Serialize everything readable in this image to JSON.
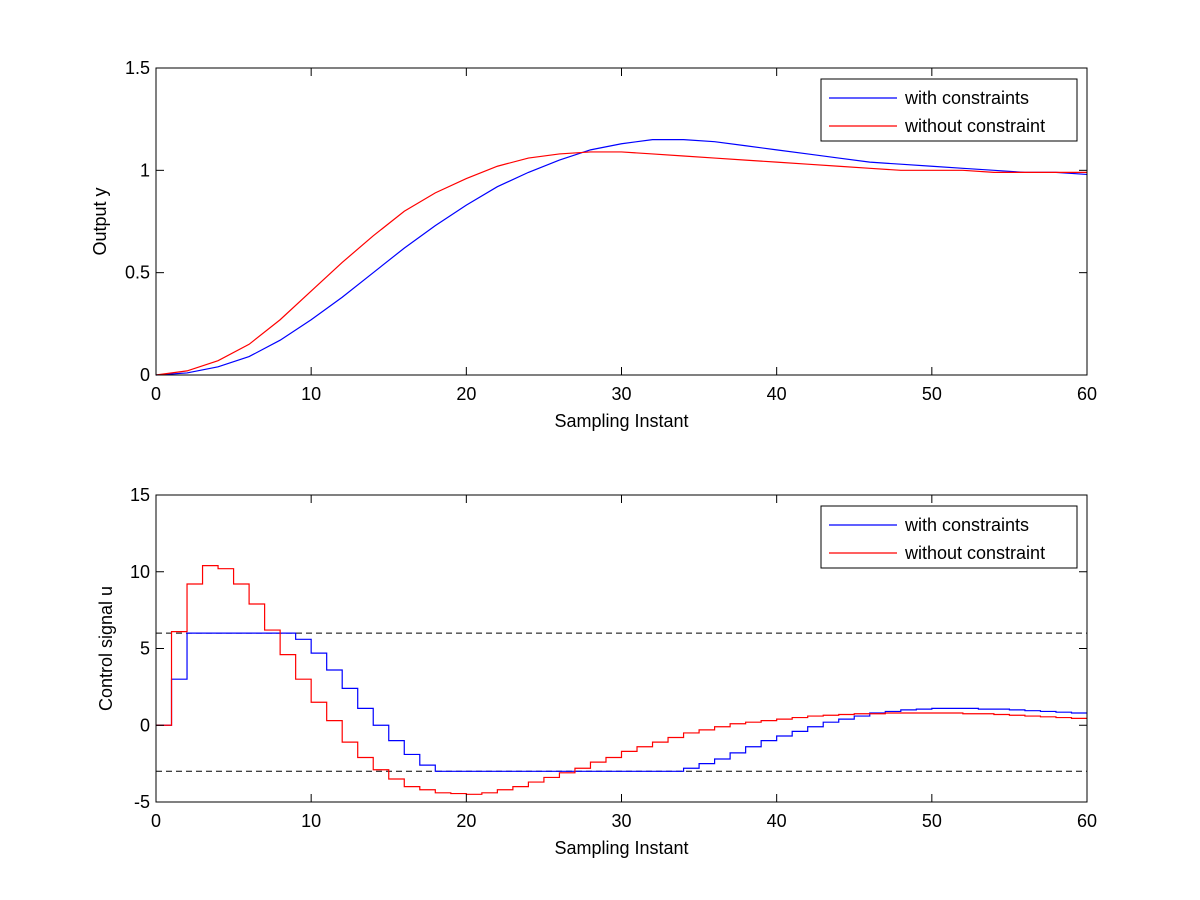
{
  "chart_data": [
    {
      "type": "line",
      "title": "",
      "xlabel": "Sampling Instant",
      "ylabel": "Output y",
      "xlim": [
        0,
        60
      ],
      "ylim": [
        0,
        1.5
      ],
      "xticks": [
        "0",
        "10",
        "20",
        "30",
        "40",
        "50",
        "60"
      ],
      "yticks": [
        "0",
        "0.5",
        "1",
        "1.5"
      ],
      "grid": false,
      "legend_position": "top-right",
      "series": [
        {
          "name": "with constraints",
          "color": "#0000ff",
          "step": false,
          "x": [
            0,
            2,
            4,
            6,
            8,
            10,
            12,
            14,
            16,
            18,
            20,
            22,
            24,
            26,
            28,
            30,
            32,
            34,
            36,
            38,
            40,
            42,
            44,
            46,
            48,
            50,
            52,
            54,
            56,
            58,
            60
          ],
          "y": [
            0,
            0.01,
            0.04,
            0.09,
            0.17,
            0.27,
            0.38,
            0.5,
            0.62,
            0.73,
            0.83,
            0.92,
            0.99,
            1.05,
            1.1,
            1.13,
            1.15,
            1.15,
            1.14,
            1.12,
            1.1,
            1.08,
            1.06,
            1.04,
            1.03,
            1.02,
            1.01,
            1.0,
            0.99,
            0.99,
            0.98
          ]
        },
        {
          "name": "without constraint",
          "color": "#ff0000",
          "step": false,
          "x": [
            0,
            2,
            4,
            6,
            8,
            10,
            12,
            14,
            16,
            18,
            20,
            22,
            24,
            26,
            28,
            30,
            32,
            34,
            36,
            38,
            40,
            42,
            44,
            46,
            48,
            50,
            52,
            54,
            56,
            58,
            60
          ],
          "y": [
            0,
            0.02,
            0.07,
            0.15,
            0.27,
            0.41,
            0.55,
            0.68,
            0.8,
            0.89,
            0.96,
            1.02,
            1.06,
            1.08,
            1.09,
            1.09,
            1.08,
            1.07,
            1.06,
            1.05,
            1.04,
            1.03,
            1.02,
            1.01,
            1.0,
            1.0,
            1.0,
            0.99,
            0.99,
            0.99,
            0.99
          ]
        }
      ]
    },
    {
      "type": "line",
      "title": "",
      "xlabel": "Sampling Instant",
      "ylabel": "Control signal u",
      "xlim": [
        0,
        60
      ],
      "ylim": [
        -5,
        15
      ],
      "xticks": [
        "0",
        "10",
        "20",
        "30",
        "40",
        "50",
        "60"
      ],
      "yticks": [
        "-5",
        "0",
        "5",
        "10",
        "15"
      ],
      "grid": false,
      "legend_position": "top-right",
      "reference_lines": [
        {
          "y": 6,
          "style": "dashed",
          "color": "#000000"
        },
        {
          "y": -3,
          "style": "dashed",
          "color": "#000000"
        }
      ],
      "series": [
        {
          "name": "with constraints",
          "color": "#0000ff",
          "step": true,
          "x": [
            0,
            1,
            2,
            3,
            4,
            5,
            6,
            7,
            8,
            9,
            10,
            11,
            12,
            13,
            14,
            15,
            16,
            17,
            18,
            19,
            20,
            21,
            22,
            23,
            24,
            25,
            26,
            27,
            28,
            29,
            30,
            31,
            32,
            33,
            34,
            35,
            36,
            37,
            38,
            39,
            40,
            41,
            42,
            43,
            44,
            45,
            46,
            47,
            48,
            49,
            50,
            51,
            52,
            53,
            54,
            55,
            56,
            57,
            58,
            59,
            60
          ],
          "y": [
            0,
            3,
            6,
            6,
            6,
            6,
            6,
            6,
            6,
            5.6,
            4.7,
            3.6,
            2.4,
            1.1,
            0,
            -1,
            -1.9,
            -2.6,
            -3,
            -3,
            -3,
            -3,
            -3,
            -3,
            -3,
            -3,
            -3,
            -3,
            -3,
            -3,
            -3,
            -3,
            -3,
            -3,
            -2.8,
            -2.5,
            -2.2,
            -1.8,
            -1.4,
            -1,
            -0.7,
            -0.4,
            -0.1,
            0.2,
            0.4,
            0.6,
            0.8,
            0.9,
            1,
            1.05,
            1.1,
            1.1,
            1.1,
            1.05,
            1.05,
            1.0,
            0.95,
            0.9,
            0.85,
            0.8,
            0.8
          ]
        },
        {
          "name": "without constraint",
          "color": "#ff0000",
          "step": true,
          "x": [
            0,
            1,
            2,
            3,
            4,
            5,
            6,
            7,
            8,
            9,
            10,
            11,
            12,
            13,
            14,
            15,
            16,
            17,
            18,
            19,
            20,
            21,
            22,
            23,
            24,
            25,
            26,
            27,
            28,
            29,
            30,
            31,
            32,
            33,
            34,
            35,
            36,
            37,
            38,
            39,
            40,
            41,
            42,
            43,
            44,
            45,
            46,
            47,
            48,
            49,
            50,
            51,
            52,
            53,
            54,
            55,
            56,
            57,
            58,
            59,
            60
          ],
          "y": [
            0,
            6.1,
            9.2,
            10.4,
            10.2,
            9.2,
            7.9,
            6.2,
            4.6,
            3,
            1.5,
            0.3,
            -1.1,
            -2.1,
            -2.9,
            -3.5,
            -4,
            -4.2,
            -4.4,
            -4.45,
            -4.5,
            -4.4,
            -4.2,
            -4,
            -3.7,
            -3.4,
            -3.1,
            -2.8,
            -2.4,
            -2.1,
            -1.7,
            -1.4,
            -1.1,
            -0.8,
            -0.5,
            -0.3,
            -0.1,
            0.1,
            0.2,
            0.3,
            0.4,
            0.5,
            0.6,
            0.65,
            0.7,
            0.75,
            0.75,
            0.8,
            0.8,
            0.8,
            0.8,
            0.8,
            0.75,
            0.75,
            0.7,
            0.65,
            0.6,
            0.55,
            0.5,
            0.45,
            0.45
          ]
        }
      ]
    }
  ]
}
